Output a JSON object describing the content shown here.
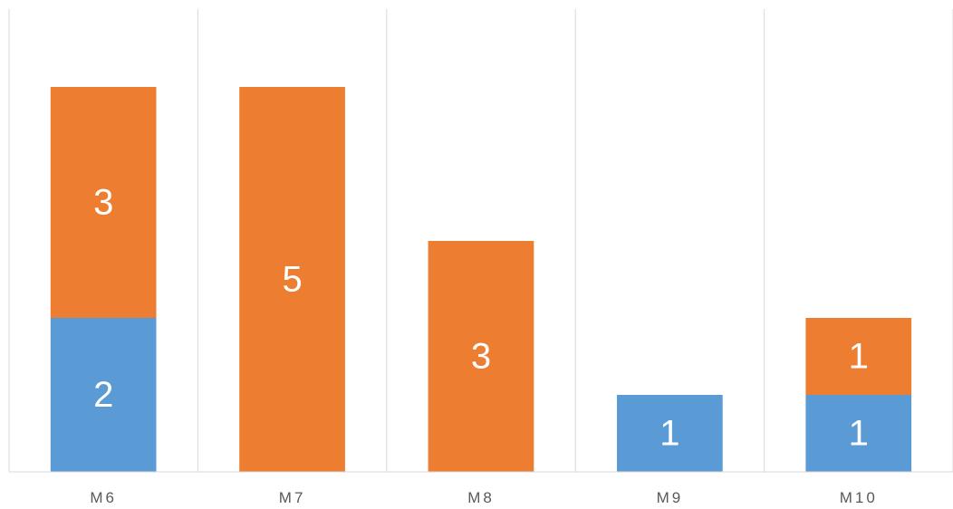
{
  "chart_data": {
    "type": "bar",
    "stacked": true,
    "orientation": "vertical",
    "categories": [
      "M6",
      "M7",
      "M8",
      "M9",
      "M10"
    ],
    "series": [
      {
        "color": "#5B9BD5",
        "values": [
          2,
          0,
          0,
          1,
          1
        ]
      },
      {
        "color": "#ED7D31",
        "values": [
          3,
          5,
          3,
          0,
          1
        ]
      }
    ],
    "ylim": [
      0,
      5
    ],
    "grid": {
      "vertical_separators": true,
      "horizontal": false
    },
    "legend": "none",
    "data_labels": true
  }
}
